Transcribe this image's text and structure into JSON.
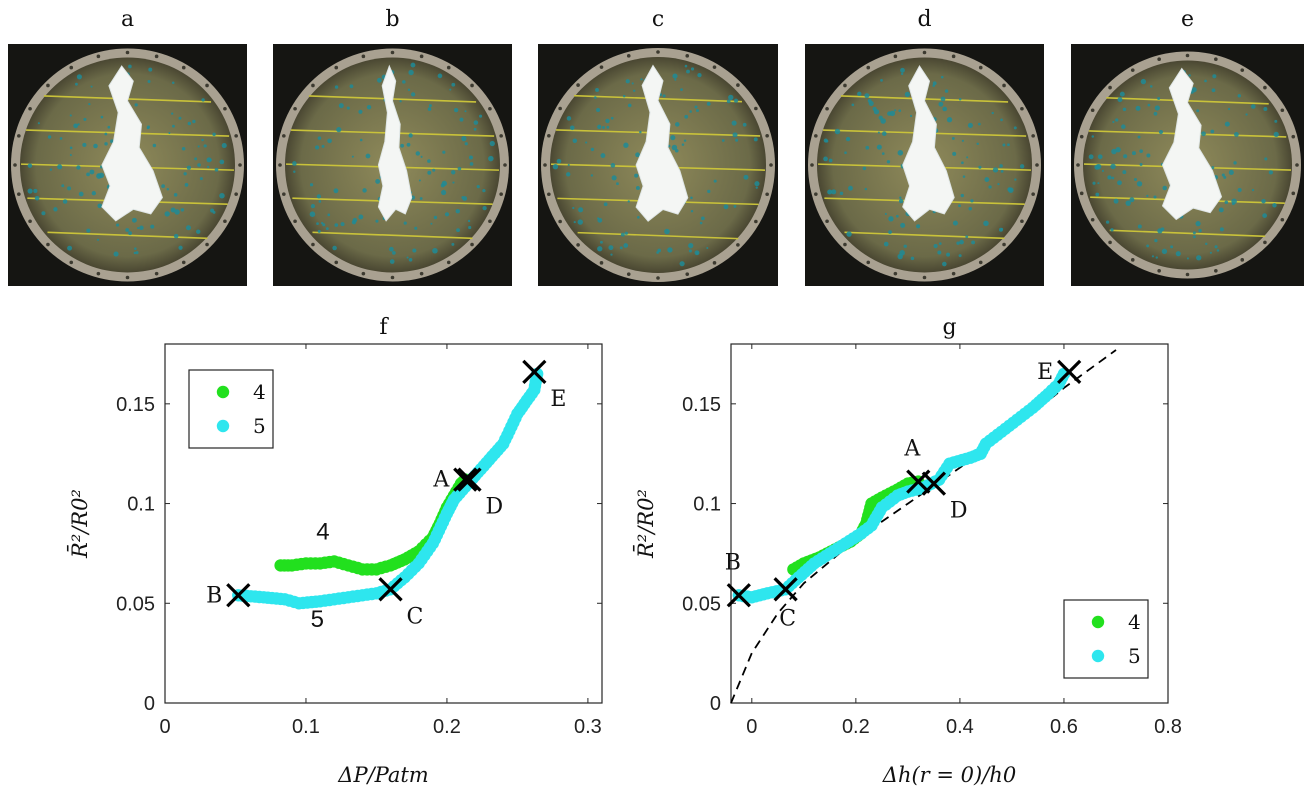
{
  "photos": [
    {
      "label": "a",
      "crack": "wide"
    },
    {
      "label": "b",
      "crack": "narrow"
    },
    {
      "label": "c",
      "crack": "medium"
    },
    {
      "label": "d",
      "crack": "medium"
    },
    {
      "label": "e",
      "crack": "wide"
    }
  ],
  "colors": {
    "series4": "#22e01e",
    "series5": "#2ee6ee",
    "marker": "#000000",
    "axis": "#262626",
    "fit": "#000000"
  },
  "chart_data": [
    {
      "panel": "f",
      "type": "scatter",
      "title": "f",
      "xlabel": "ΔP/Patm",
      "ylabel": "R̄²/R0²",
      "xlim": [
        0,
        0.31
      ],
      "ylim": [
        0,
        0.18
      ],
      "xticks": [
        0,
        0.1,
        0.2,
        0.3
      ],
      "yticks": [
        0,
        0.05,
        0.1,
        0.15
      ],
      "xtick_labels": [
        "0",
        "0.1",
        "0.2",
        "0.3"
      ],
      "ytick_labels": [
        "0",
        "0.05",
        "0.1",
        "0.15"
      ],
      "grid": false,
      "legend": {
        "position": "top-left",
        "entries": [
          "4",
          "5"
        ]
      },
      "series": [
        {
          "name": "4",
          "color": "#22e01e",
          "path": [
            [
              0.082,
              0.069
            ],
            [
              0.09,
              0.069
            ],
            [
              0.1,
              0.07
            ],
            [
              0.11,
              0.07
            ],
            [
              0.12,
              0.071
            ],
            [
              0.13,
              0.069
            ],
            [
              0.14,
              0.067
            ],
            [
              0.15,
              0.067
            ],
            [
              0.16,
              0.069
            ],
            [
              0.17,
              0.072
            ],
            [
              0.18,
              0.076
            ],
            [
              0.19,
              0.083
            ],
            [
              0.195,
              0.09
            ],
            [
              0.2,
              0.098
            ],
            [
              0.21,
              0.11
            ],
            [
              0.213,
              0.112
            ]
          ]
        },
        {
          "name": "5",
          "color": "#2ee6ee",
          "path": [
            [
              0.052,
              0.054
            ],
            [
              0.07,
              0.053
            ],
            [
              0.085,
              0.052
            ],
            [
              0.095,
              0.05
            ],
            [
              0.11,
              0.051
            ],
            [
              0.13,
              0.053
            ],
            [
              0.15,
              0.055
            ],
            [
              0.16,
              0.057
            ],
            [
              0.17,
              0.063
            ],
            [
              0.18,
              0.07
            ],
            [
              0.19,
              0.08
            ],
            [
              0.2,
              0.095
            ],
            [
              0.205,
              0.102
            ],
            [
              0.215,
              0.11
            ],
            [
              0.22,
              0.114
            ],
            [
              0.23,
              0.122
            ],
            [
              0.24,
              0.13
            ],
            [
              0.25,
              0.145
            ],
            [
              0.255,
              0.15
            ],
            [
              0.262,
              0.157
            ],
            [
              0.264,
              0.165
            ]
          ]
        }
      ],
      "markers": [
        {
          "label": "A",
          "x": 0.213,
          "y": 0.112,
          "label_side": "left"
        },
        {
          "label": "B",
          "x": 0.052,
          "y": 0.054,
          "label_side": "left"
        },
        {
          "label": "C",
          "x": 0.16,
          "y": 0.057,
          "label_side": "below-right"
        },
        {
          "label": "D",
          "x": 0.216,
          "y": 0.112,
          "label_side": "below-right"
        },
        {
          "label": "E",
          "x": 0.262,
          "y": 0.166,
          "label_side": "below-right"
        }
      ],
      "annotations": [
        {
          "text": "4",
          "x": 0.112,
          "y": 0.082
        },
        {
          "text": "5",
          "x": 0.108,
          "y": 0.038
        }
      ]
    },
    {
      "panel": "g",
      "type": "scatter",
      "title": "g",
      "xlabel": "Δh(r = 0)/h0",
      "ylabel": "R̄²/R0²",
      "xlim": [
        -0.04,
        0.8
      ],
      "ylim": [
        0,
        0.18
      ],
      "xticks": [
        0,
        0.2,
        0.4,
        0.6,
        0.8
      ],
      "yticks": [
        0,
        0.05,
        0.1,
        0.15
      ],
      "xtick_labels": [
        "0",
        "0.2",
        "0.4",
        "0.6",
        "0.8"
      ],
      "ytick_labels": [
        "0",
        "0.05",
        "0.1",
        "0.15"
      ],
      "grid": false,
      "legend": {
        "position": "bottom-right",
        "entries": [
          "4",
          "5"
        ]
      },
      "series": [
        {
          "name": "4",
          "color": "#22e01e",
          "path": [
            [
              0.08,
              0.067
            ],
            [
              0.1,
              0.07
            ],
            [
              0.13,
              0.073
            ],
            [
              0.16,
              0.077
            ],
            [
              0.19,
              0.081
            ],
            [
              0.21,
              0.085
            ],
            [
              0.22,
              0.09
            ],
            [
              0.23,
              0.1
            ],
            [
              0.25,
              0.103
            ],
            [
              0.28,
              0.107
            ],
            [
              0.3,
              0.11
            ],
            [
              0.32,
              0.111
            ]
          ]
        },
        {
          "name": "5",
          "color": "#2ee6ee",
          "path": [
            [
              -0.025,
              0.054
            ],
            [
              0.0,
              0.053
            ],
            [
              0.03,
              0.055
            ],
            [
              0.065,
              0.057
            ],
            [
              0.09,
              0.063
            ],
            [
              0.12,
              0.07
            ],
            [
              0.15,
              0.075
            ],
            [
              0.18,
              0.08
            ],
            [
              0.21,
              0.085
            ],
            [
              0.23,
              0.089
            ],
            [
              0.25,
              0.098
            ],
            [
              0.28,
              0.104
            ],
            [
              0.3,
              0.106
            ],
            [
              0.33,
              0.108
            ],
            [
              0.36,
              0.112
            ],
            [
              0.38,
              0.12
            ],
            [
              0.42,
              0.123
            ],
            [
              0.44,
              0.125
            ],
            [
              0.45,
              0.13
            ],
            [
              0.48,
              0.136
            ],
            [
              0.51,
              0.142
            ],
            [
              0.54,
              0.148
            ],
            [
              0.57,
              0.155
            ],
            [
              0.59,
              0.16
            ],
            [
              0.6,
              0.165
            ]
          ]
        }
      ],
      "fit_curve": {
        "style": "dashed",
        "points": [
          [
            -0.04,
            0.0
          ],
          [
            0.0,
            0.025
          ],
          [
            0.05,
            0.045
          ],
          [
            0.1,
            0.06
          ],
          [
            0.2,
            0.082
          ],
          [
            0.3,
            0.1
          ],
          [
            0.4,
            0.118
          ],
          [
            0.5,
            0.137
          ],
          [
            0.6,
            0.158
          ],
          [
            0.7,
            0.177
          ]
        ]
      },
      "markers": [
        {
          "label": "A",
          "x": 0.32,
          "y": 0.111,
          "label_side": "above"
        },
        {
          "label": "B",
          "x": -0.025,
          "y": 0.054,
          "label_side": "above"
        },
        {
          "label": "C",
          "x": 0.065,
          "y": 0.057,
          "label_side": "below"
        },
        {
          "label": "D",
          "x": 0.35,
          "y": 0.11,
          "label_side": "below-right"
        },
        {
          "label": "E",
          "x": 0.61,
          "y": 0.166,
          "label_side": "left"
        }
      ]
    }
  ]
}
